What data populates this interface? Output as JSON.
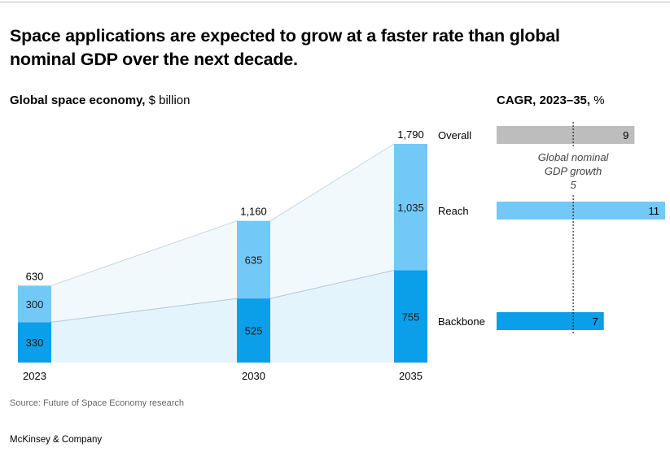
{
  "title": "Space applications are expected to grow at a faster rate than global nominal GDP over the next decade.",
  "left_subtitle_bold": "Global space economy,",
  "left_subtitle_unit": "$ billion",
  "right_subtitle_bold": "CAGR, 2023–35,",
  "right_subtitle_unit": "%",
  "source": "Source: Future of Space Economy research",
  "brand": "McKinsey & Company",
  "colors": {
    "reach": "#72c9f7",
    "backbone": "#0a9fe8",
    "overall": "#bdbdbd",
    "area_light": "#e6f5fc"
  },
  "chart_data": [
    {
      "type": "bar",
      "stacked": true,
      "title": "Global space economy, $ billion",
      "categories": [
        "2023",
        "2030",
        "2035"
      ],
      "series": [
        {
          "name": "Backbone",
          "values": [
            330,
            525,
            755
          ]
        },
        {
          "name": "Reach",
          "values": [
            300,
            635,
            1035
          ]
        }
      ],
      "totals": [
        630,
        1160,
        1790
      ],
      "ylim": [
        0,
        1790
      ]
    },
    {
      "type": "bar",
      "orientation": "horizontal",
      "title": "CAGR, 2023–35, %",
      "categories": [
        "Overall",
        "Reach",
        "Backbone"
      ],
      "values": [
        9,
        11,
        7
      ],
      "reference_line": {
        "label_line1": "Global nominal",
        "label_line2": "GDP growth",
        "value": 5
      },
      "xlim": [
        0,
        11
      ]
    }
  ]
}
